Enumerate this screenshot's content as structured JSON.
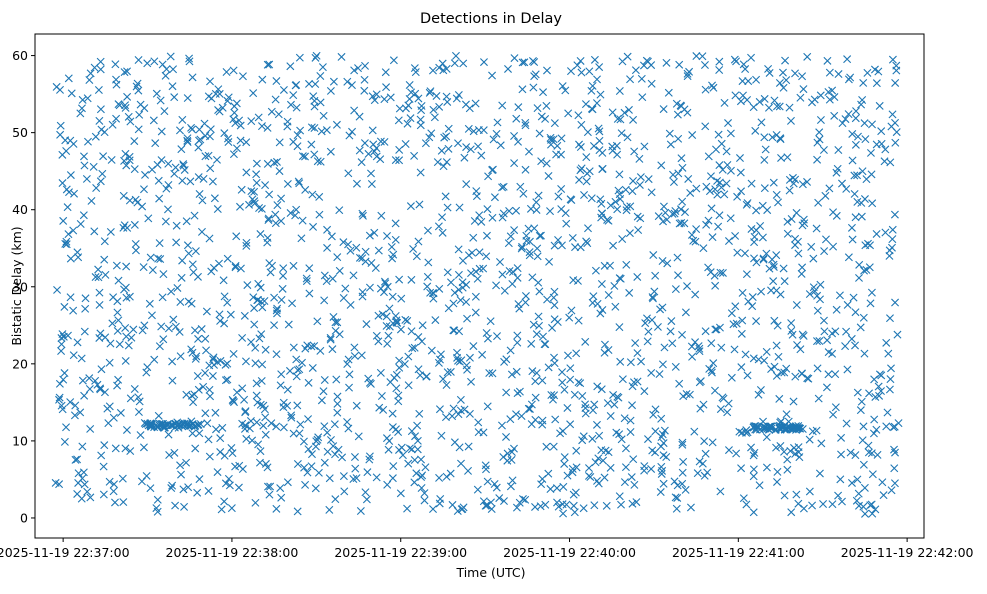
{
  "chart_data": {
    "type": "scatter",
    "title": "Detections in Delay",
    "xlabel": "Time (UTC)",
    "ylabel": "Bistatic Delay (km)",
    "x_range": [
      "2025-11-19 22:36:50",
      "2025-11-19 22:42:06"
    ],
    "ylim": [
      -2.6,
      62.8
    ],
    "x_ticks": [
      "2025-11-19 22:37:00",
      "2025-11-19 22:38:00",
      "2025-11-19 22:39:00",
      "2025-11-19 22:40:00",
      "2025-11-19 22:41:00",
      "2025-11-19 22:42:00"
    ],
    "y_ticks": [
      0,
      10,
      20,
      30,
      40,
      50,
      60
    ],
    "marker": "x",
    "marker_color": "#1f77b4",
    "grid": false,
    "legend": "none",
    "point_count": 2200,
    "x_data_range": [
      "2025-11-19 22:36:57",
      "2025-11-19 22:41:57"
    ],
    "y_data_range": [
      0.5,
      60
    ],
    "clusters": [
      {
        "x_start": "2025-11-19 22:37:29",
        "x_end": "2025-11-19 22:37:49",
        "y": 12.0
      },
      {
        "x_start": "2025-11-19 22:41:05",
        "x_end": "2025-11-19 22:41:23",
        "y": 11.7
      }
    ]
  }
}
